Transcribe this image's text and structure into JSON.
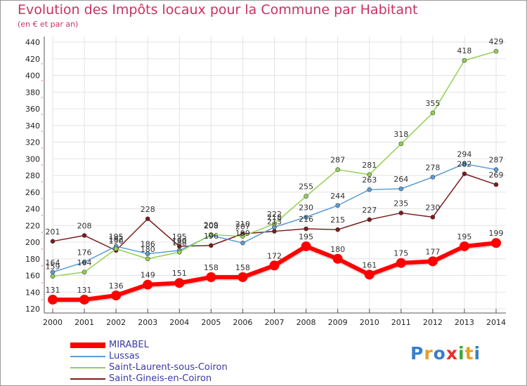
{
  "title": "Evolution des Impôts locaux pour la Commune par Habitant",
  "subtitle": "(en € et par an)",
  "brand": {
    "name": "Proxiti",
    "letters": [
      {
        "char": "P",
        "color": "#3a7fc8"
      },
      {
        "char": "r",
        "color": "#e8a020"
      },
      {
        "char": "o",
        "color": "#3a7fc8"
      },
      {
        "char": "x",
        "color": "#e8302a"
      },
      {
        "char": "i",
        "color": "#3aaa3a"
      },
      {
        "char": "t",
        "color": "#e8a020"
      },
      {
        "char": "i",
        "color": "#3a7fc8"
      }
    ]
  },
  "chart_data": {
    "type": "line",
    "title": "Evolution des Impôts locaux pour la Commune par Habitant",
    "subtitle": "(en € et par an)",
    "xlabel": "",
    "ylabel": "",
    "categories": [
      "2000",
      "2001",
      "2002",
      "2003",
      "2004",
      "2005",
      "2006",
      "2007",
      "2008",
      "2009",
      "2010",
      "2011",
      "2012",
      "2013",
      "2014"
    ],
    "ylim": [
      120,
      440
    ],
    "yticks": [
      120,
      140,
      160,
      180,
      200,
      220,
      240,
      260,
      280,
      300,
      320,
      340,
      360,
      380,
      400,
      420,
      440
    ],
    "grid": true,
    "legend_position": "bottom-left",
    "series": [
      {
        "name": "Saint-Gineis-en-Coiron",
        "color": "#7a1a1a",
        "width": 1.5,
        "values": [
          201,
          208,
          190,
          228,
          195,
          196,
          210,
          213,
          216,
          215,
          227,
          235,
          230,
          282,
          269
        ],
        "labels": [
          "201",
          "208",
          "190",
          "228",
          "195",
          "196",
          "210",
          "213",
          "216",
          "215",
          "227",
          "235",
          "230",
          "282",
          "269"
        ]
      },
      {
        "name": "Lussas",
        "color": "#5b9bd5",
        "width": 1.5,
        "values": [
          164,
          176,
          195,
          186,
          190,
          208,
          199,
          218,
          230,
          244,
          263,
          264,
          278,
          294,
          287
        ],
        "labels": [
          "164",
          "176",
          "195",
          "186",
          "190",
          "208",
          "199",
          "218",
          "230",
          "244",
          "263",
          "264",
          "278",
          "294",
          "287"
        ]
      },
      {
        "name": "Saint-Laurent-sous-Coiron",
        "color": "#92d050",
        "width": 1.5,
        "values": [
          159,
          164,
          192,
          180,
          188,
          209,
          207,
          222,
          255,
          287,
          281,
          318,
          355,
          418,
          429
        ],
        "labels": [
          "159",
          "164",
          "192",
          "180",
          "188",
          "209",
          "207",
          "222",
          "255",
          "287",
          "281",
          "318",
          "355",
          "418",
          "429"
        ]
      },
      {
        "name": "MIRABEL",
        "color": "#ff0000",
        "width": 6,
        "values": [
          131,
          131,
          136,
          149,
          151,
          158,
          158,
          172,
          195,
          180,
          161,
          175,
          177,
          195,
          199
        ],
        "labels": [
          "131",
          "131",
          "136",
          "149",
          "151",
          "158",
          "158",
          "172",
          "195",
          "180",
          "161",
          "175",
          "177",
          "195",
          "199"
        ]
      }
    ],
    "legend": [
      {
        "name": "MIRABEL",
        "color": "#ff0000",
        "width": 8
      },
      {
        "name": "Lussas",
        "color": "#5b9bd5",
        "width": 2
      },
      {
        "name": "Saint-Laurent-sous-Coiron",
        "color": "#92d050",
        "width": 2
      },
      {
        "name": "Saint-Gineis-en-Coiron",
        "color": "#7a1a1a",
        "width": 2
      }
    ]
  }
}
